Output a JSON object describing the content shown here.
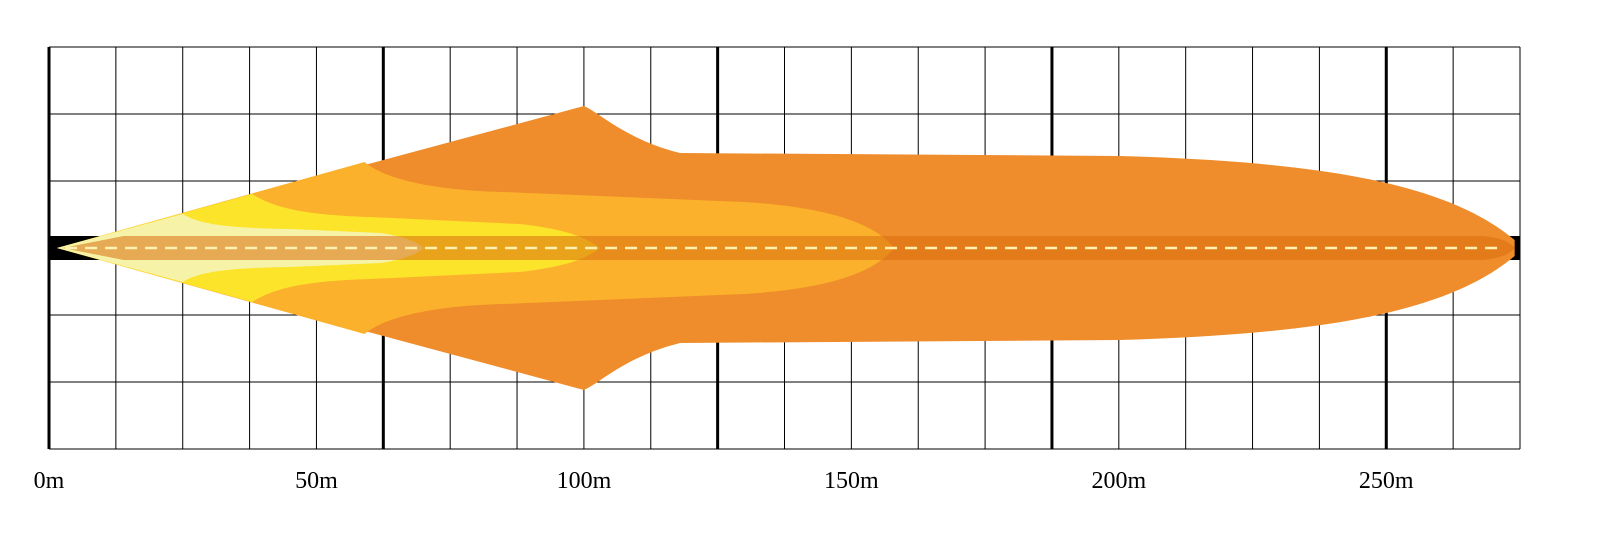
{
  "chart_data": {
    "type": "area",
    "title": "",
    "xlabel": "",
    "ylabel": "",
    "x_unit": "m",
    "xlim": [
      0,
      275
    ],
    "grid": true,
    "x_ticks": [
      {
        "value": 0,
        "label": "0m"
      },
      {
        "value": 50,
        "label": "50m"
      },
      {
        "value": 100,
        "label": "100m"
      },
      {
        "value": 150,
        "label": "150m"
      },
      {
        "value": 200,
        "label": "200m"
      },
      {
        "value": 250,
        "label": "250m"
      }
    ],
    "zones": [
      {
        "reach_m": 274,
        "color": "#ef8c2b"
      },
      {
        "reach_m": 158,
        "color": "#fbb12c"
      },
      {
        "reach_m": 103,
        "color": "#fce42b"
      },
      {
        "reach_m": 70,
        "color": "#f6f3a9"
      }
    ],
    "beam_center_color": "#d96e0e",
    "beam_center_inner_color": "#e6cb15",
    "center_line_color": "#fff2b0"
  }
}
